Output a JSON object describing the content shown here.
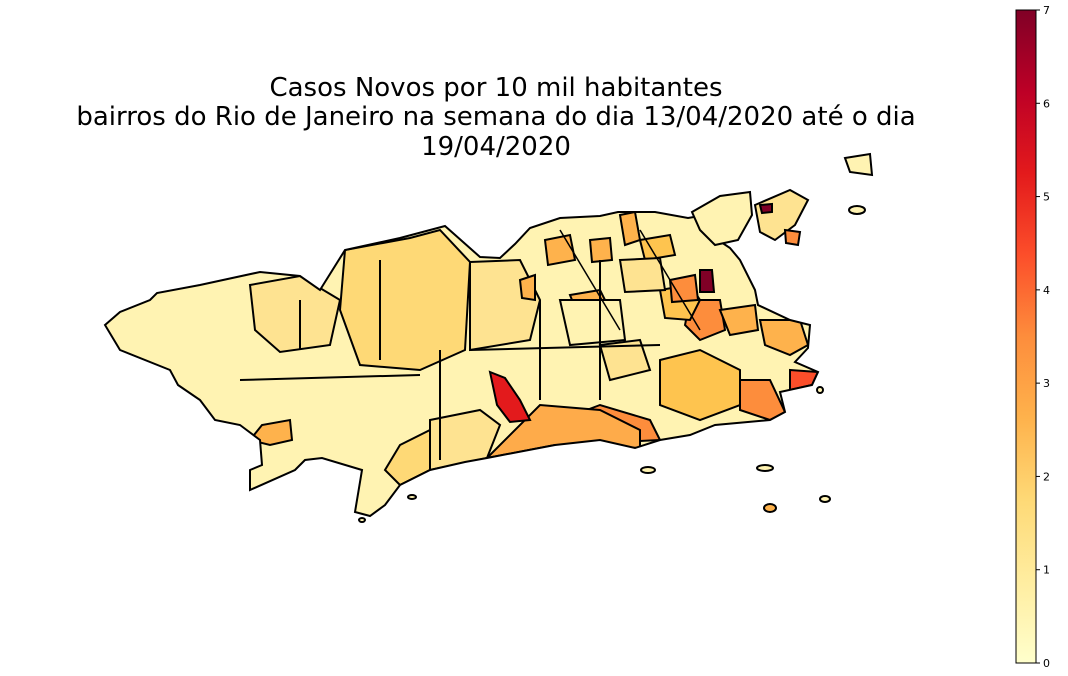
{
  "title_line1": "Casos Novos por 10 mil habitantes",
  "title_line2": "bairros do Rio de Janeiro na semana do dia 13/04/2020 até o dia 19/04/2020",
  "colorbar": {
    "colormap": "YlOrRd",
    "range": [
      0,
      7
    ],
    "ticks": [
      "0",
      "1",
      "2",
      "3",
      "4",
      "5",
      "6",
      "7"
    ]
  },
  "colors": {
    "outline": "#000000",
    "ramp": [
      "#ffffcc",
      "#ffeda0",
      "#fed976",
      "#feb24c",
      "#fd8d3c",
      "#fc4e2a",
      "#e31a1c",
      "#bd0026",
      "#800026"
    ]
  }
}
